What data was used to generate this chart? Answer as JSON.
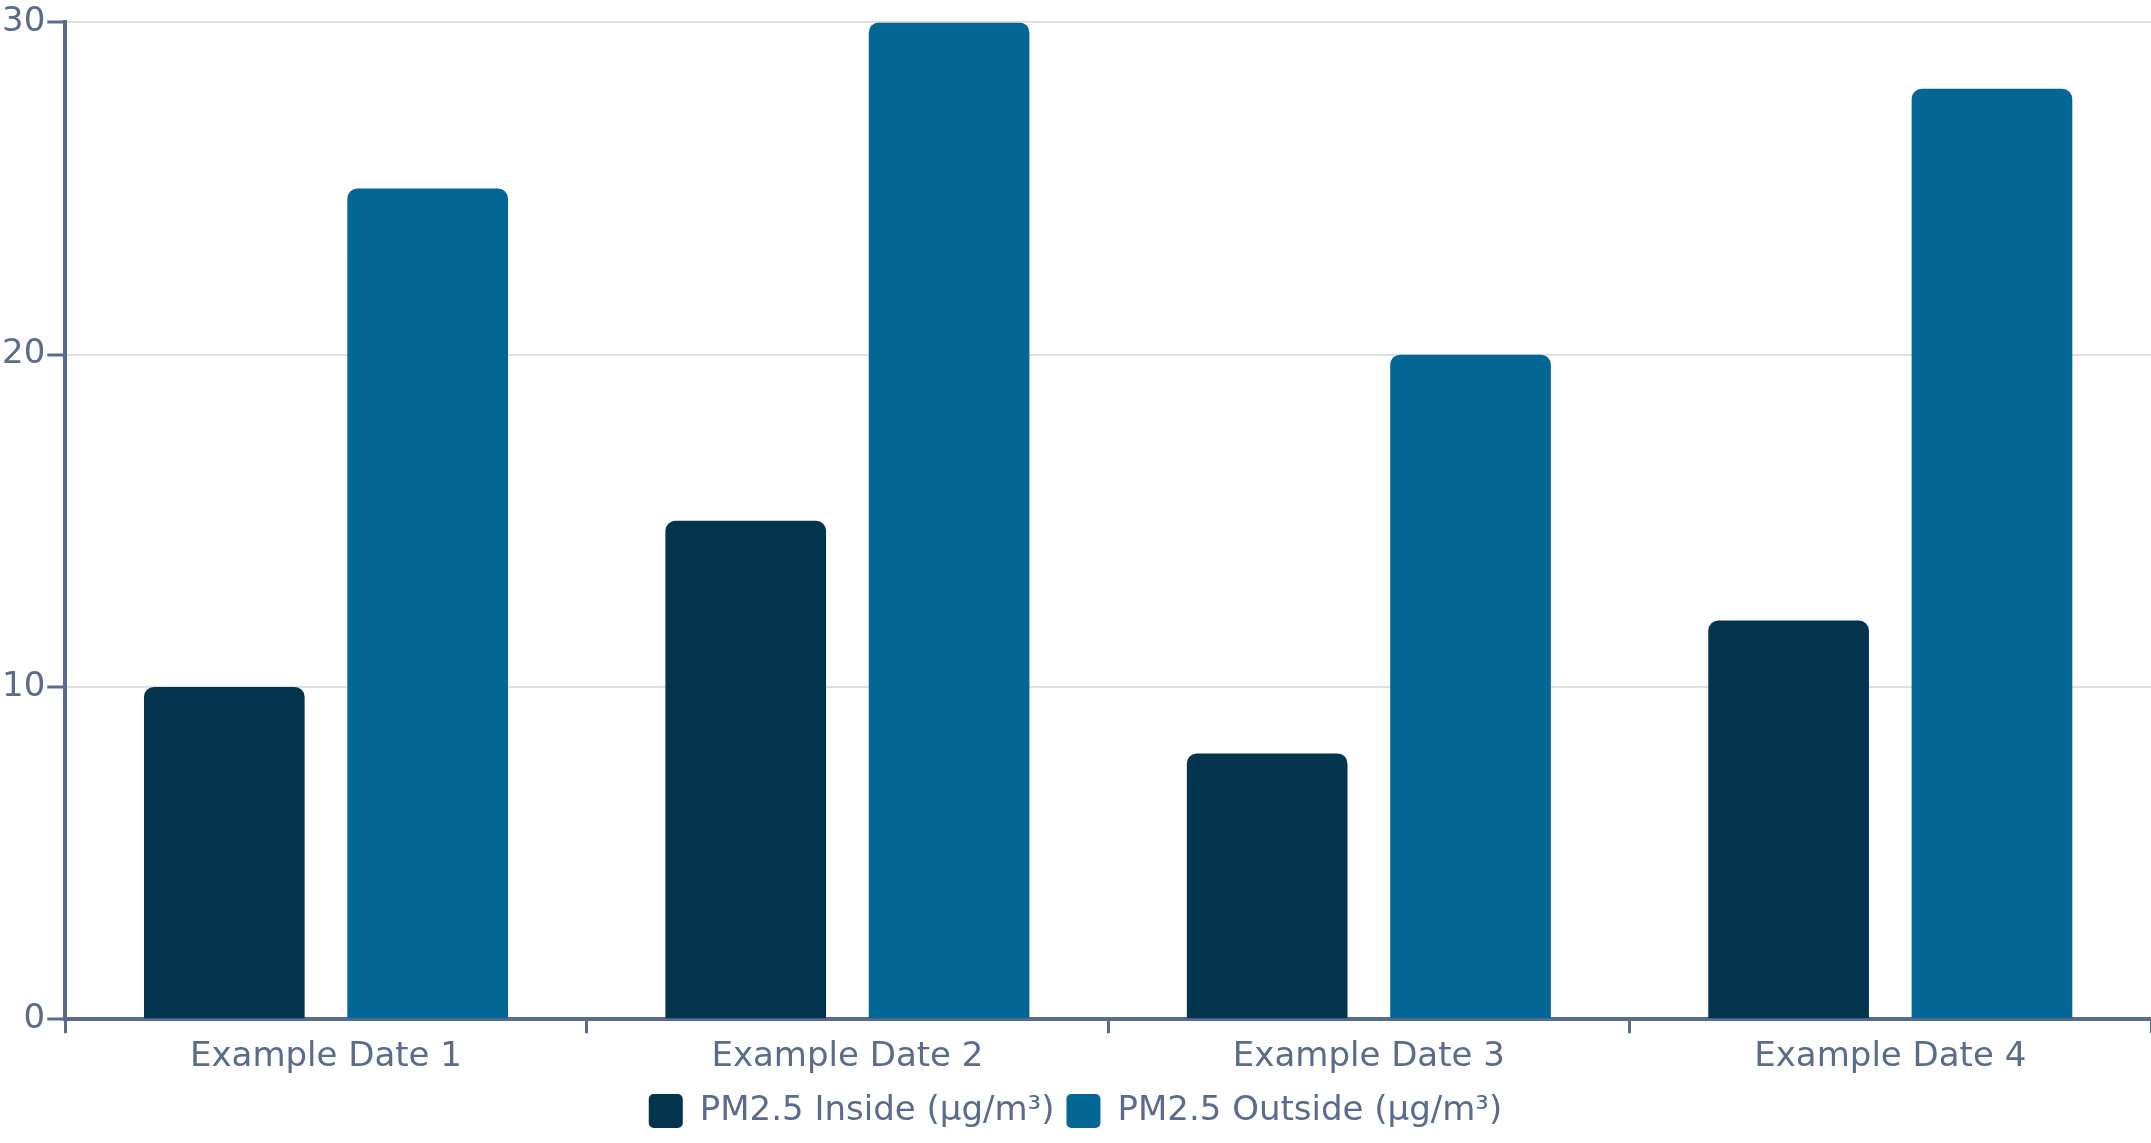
{
  "chart_data": {
    "type": "bar",
    "categories": [
      "Example Date 1",
      "Example Date 2",
      "Example Date 3",
      "Example Date 4"
    ],
    "series": [
      {
        "name": "PM2.5 Inside (µg/m³)",
        "color": "#03344d",
        "values": [
          10,
          15,
          8,
          12
        ]
      },
      {
        "name": "PM2.5 Outside (µg/m³)",
        "color": "#036695",
        "values": [
          25,
          30,
          20,
          28
        ]
      }
    ],
    "ylim": [
      0,
      30
    ],
    "yticks": [
      0,
      10,
      20,
      30
    ],
    "grid": "y",
    "legend": "bottom"
  }
}
